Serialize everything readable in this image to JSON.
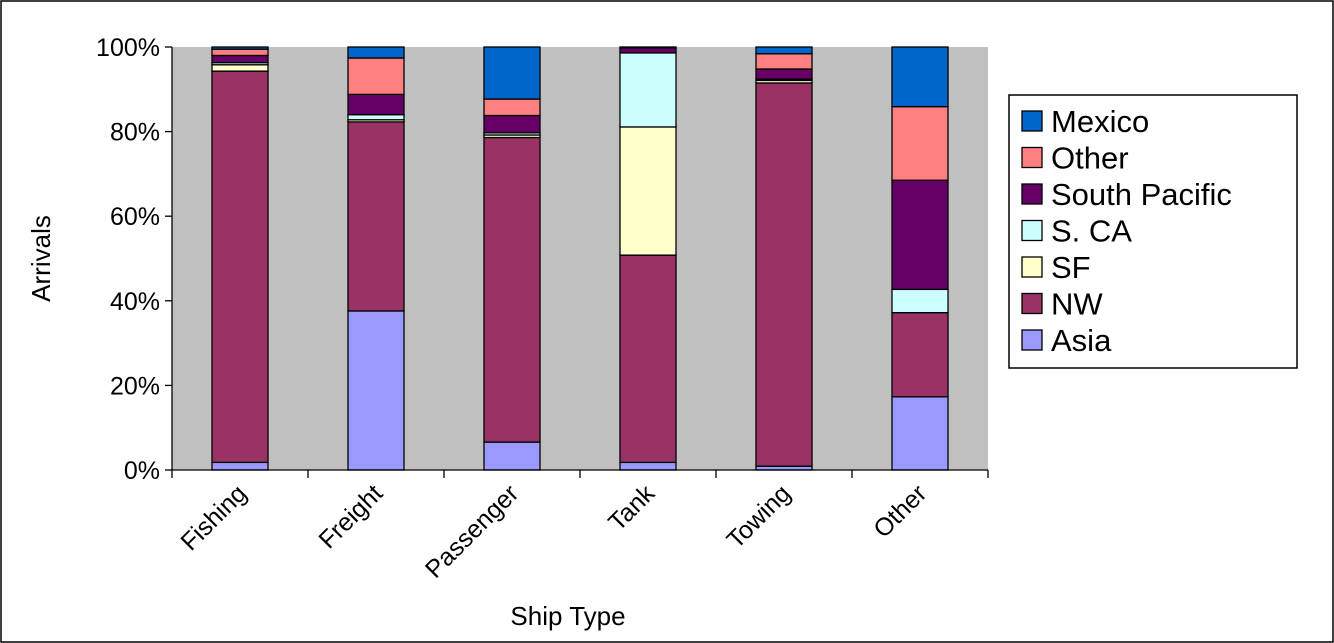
{
  "chart_data": {
    "type": "bar",
    "stacked": true,
    "percent_stacked": true,
    "title": "",
    "xlabel": "Ship Type",
    "ylabel": "Arrivals",
    "ylim": [
      0,
      100
    ],
    "yticks": [
      "0%",
      "20%",
      "40%",
      "60%",
      "80%",
      "100%"
    ],
    "categories": [
      "Fishing",
      "Freight",
      "Passenger",
      "Tank",
      "Towing",
      "Other"
    ],
    "grid": false,
    "plot_background": "#c0c0c0",
    "legend_position": "right",
    "series": [
      {
        "name": "Asia",
        "color": "#9999ff",
        "values": [
          1.8,
          37.6,
          6.6,
          1.8,
          0.9,
          17.3
        ]
      },
      {
        "name": "NW",
        "color": "#993366",
        "values": [
          92.5,
          44.7,
          72.0,
          49.0,
          90.6,
          19.9
        ]
      },
      {
        "name": "SF",
        "color": "#ffffcc",
        "values": [
          1.5,
          0.5,
          0.6,
          30.3,
          0.6,
          0.0
        ]
      },
      {
        "name": "S. CA",
        "color": "#ccffff",
        "values": [
          0.5,
          1.2,
          0.5,
          17.5,
          0.3,
          5.5
        ]
      },
      {
        "name": "South Pacific",
        "color": "#660066",
        "values": [
          1.7,
          4.8,
          4.1,
          1.2,
          2.4,
          25.8
        ]
      },
      {
        "name": "Other",
        "color": "#ff8080",
        "values": [
          1.5,
          8.6,
          3.9,
          0.0,
          3.6,
          17.4
        ]
      },
      {
        "name": "Mexico",
        "color": "#0066cc",
        "values": [
          0.5,
          2.6,
          12.3,
          0.2,
          1.6,
          14.1
        ]
      }
    ]
  }
}
